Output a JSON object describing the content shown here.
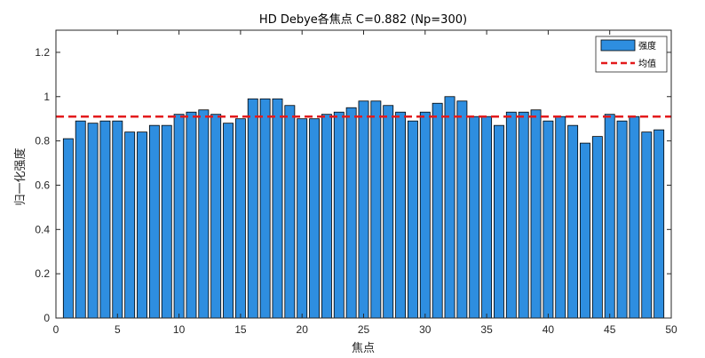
{
  "chart_data": {
    "type": "bar",
    "title": "HD Debye各焦点 C=0.882 (Np=300)",
    "xlabel": "焦点",
    "ylabel": "归一化强度",
    "xlim": [
      0,
      50
    ],
    "ylim": [
      0,
      1.3
    ],
    "xticks": [
      0,
      5,
      10,
      15,
      20,
      25,
      30,
      35,
      40,
      45,
      50
    ],
    "yticks": [
      0,
      0.2,
      0.4,
      0.6,
      0.8,
      1,
      1.2
    ],
    "xtick_labels": [
      "0",
      "5",
      "10",
      "15",
      "20",
      "25",
      "30",
      "35",
      "40",
      "45",
      "50"
    ],
    "ytick_labels": [
      "0",
      "0.2",
      "0.4",
      "0.6",
      "0.8",
      "1",
      "1.2"
    ],
    "grid": false,
    "legend_position": "top-right",
    "categories": [
      1,
      2,
      3,
      4,
      5,
      6,
      7,
      8,
      9,
      10,
      11,
      12,
      13,
      14,
      15,
      16,
      17,
      18,
      19,
      20,
      21,
      22,
      23,
      24,
      25,
      26,
      27,
      28,
      29,
      30,
      31,
      32,
      33,
      34,
      35,
      36,
      37,
      38,
      39,
      40,
      41,
      42,
      43,
      44,
      45,
      46,
      47,
      48,
      49
    ],
    "series": [
      {
        "name": "强度",
        "color": "#2e8ee0",
        "values": [
          0.81,
          0.89,
          0.88,
          0.89,
          0.89,
          0.84,
          0.84,
          0.87,
          0.87,
          0.92,
          0.93,
          0.94,
          0.92,
          0.88,
          0.9,
          0.99,
          0.99,
          0.99,
          0.96,
          0.9,
          0.9,
          0.92,
          0.93,
          0.95,
          0.98,
          0.98,
          0.96,
          0.93,
          0.89,
          0.93,
          0.97,
          1.0,
          0.98,
          0.91,
          0.91,
          0.87,
          0.93,
          0.93,
          0.94,
          0.89,
          0.91,
          0.87,
          0.79,
          0.82,
          0.92,
          0.89,
          0.91,
          0.84,
          0.85
        ]
      }
    ],
    "mean_line": {
      "name": "均值",
      "value": 0.91,
      "color": "#e31a1c"
    }
  }
}
